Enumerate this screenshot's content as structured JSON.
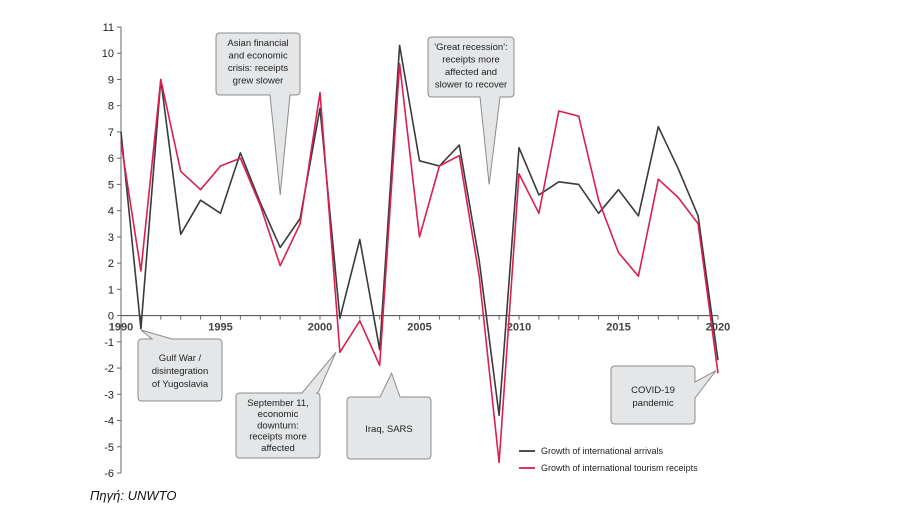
{
  "source": "Πηγή: UNWTO",
  "colors": {
    "arrivals": "#3b3b3b",
    "receipts": "#d9204f",
    "callout_fill": "#e4e6e8",
    "callout_stroke": "#8c8c8c"
  },
  "chart_data": {
    "type": "line",
    "title": "",
    "xlabel": "",
    "ylabel": "",
    "xlim": [
      1990,
      2020
    ],
    "ylim": [
      -6,
      11
    ],
    "y_ticks": [
      11,
      10,
      9,
      8,
      7,
      6,
      5,
      4,
      3,
      2,
      1,
      0,
      -1,
      -2,
      -3,
      -4,
      -5,
      -6
    ],
    "x_ticks": [
      1990,
      1995,
      2000,
      2005,
      2010,
      2015,
      2020
    ],
    "grid": false,
    "legend_position": "bottom-right",
    "x": [
      1990,
      1991,
      1992,
      1993,
      1994,
      1995,
      1996,
      1997,
      1998,
      1999,
      2000,
      2001,
      2002,
      2003,
      2004,
      2005,
      2006,
      2007,
      2008,
      2009,
      2010,
      2011,
      2012,
      2013,
      2014,
      2015,
      2016,
      2017,
      2018,
      2019,
      2020
    ],
    "series": [
      {
        "name": "Growth of international arrivals",
        "values": [
          7.0,
          -0.5,
          9.0,
          3.1,
          4.4,
          3.9,
          6.2,
          4.3,
          2.6,
          3.7,
          7.9,
          -0.1,
          2.9,
          -1.3,
          10.3,
          5.9,
          5.7,
          6.5,
          2.1,
          -3.8,
          6.4,
          4.6,
          5.1,
          5.0,
          3.9,
          4.8,
          3.8,
          7.2,
          5.6,
          3.8,
          -1.7
        ]
      },
      {
        "name": "Growth of international tourism receipts",
        "values": [
          6.6,
          1.7,
          9.0,
          5.5,
          4.8,
          5.7,
          6.0,
          4.2,
          1.9,
          3.5,
          8.5,
          -1.4,
          -0.2,
          -1.9,
          9.6,
          3.0,
          5.7,
          6.1,
          1.5,
          -5.6,
          5.4,
          3.9,
          7.8,
          7.6,
          4.4,
          2.4,
          1.5,
          5.2,
          4.5,
          3.5,
          -2.2
        ]
      }
    ],
    "annotations": [
      {
        "text": [
          "Asian financial",
          "and economic",
          "crisis: receipts",
          "grew slower"
        ]
      },
      {
        "text": [
          "'Great recession':",
          "receipts more",
          "affected and",
          "slower to recover"
        ]
      },
      {
        "text": [
          "Gulf War /",
          "disintegration",
          "of Yugoslavia"
        ]
      },
      {
        "text": [
          "September 11,",
          "economic",
          "downturn:",
          "receipts more",
          "affected"
        ]
      },
      {
        "text": [
          "Iraq, SARS"
        ]
      },
      {
        "text": [
          "COVID-19",
          "pandemic"
        ]
      }
    ]
  }
}
